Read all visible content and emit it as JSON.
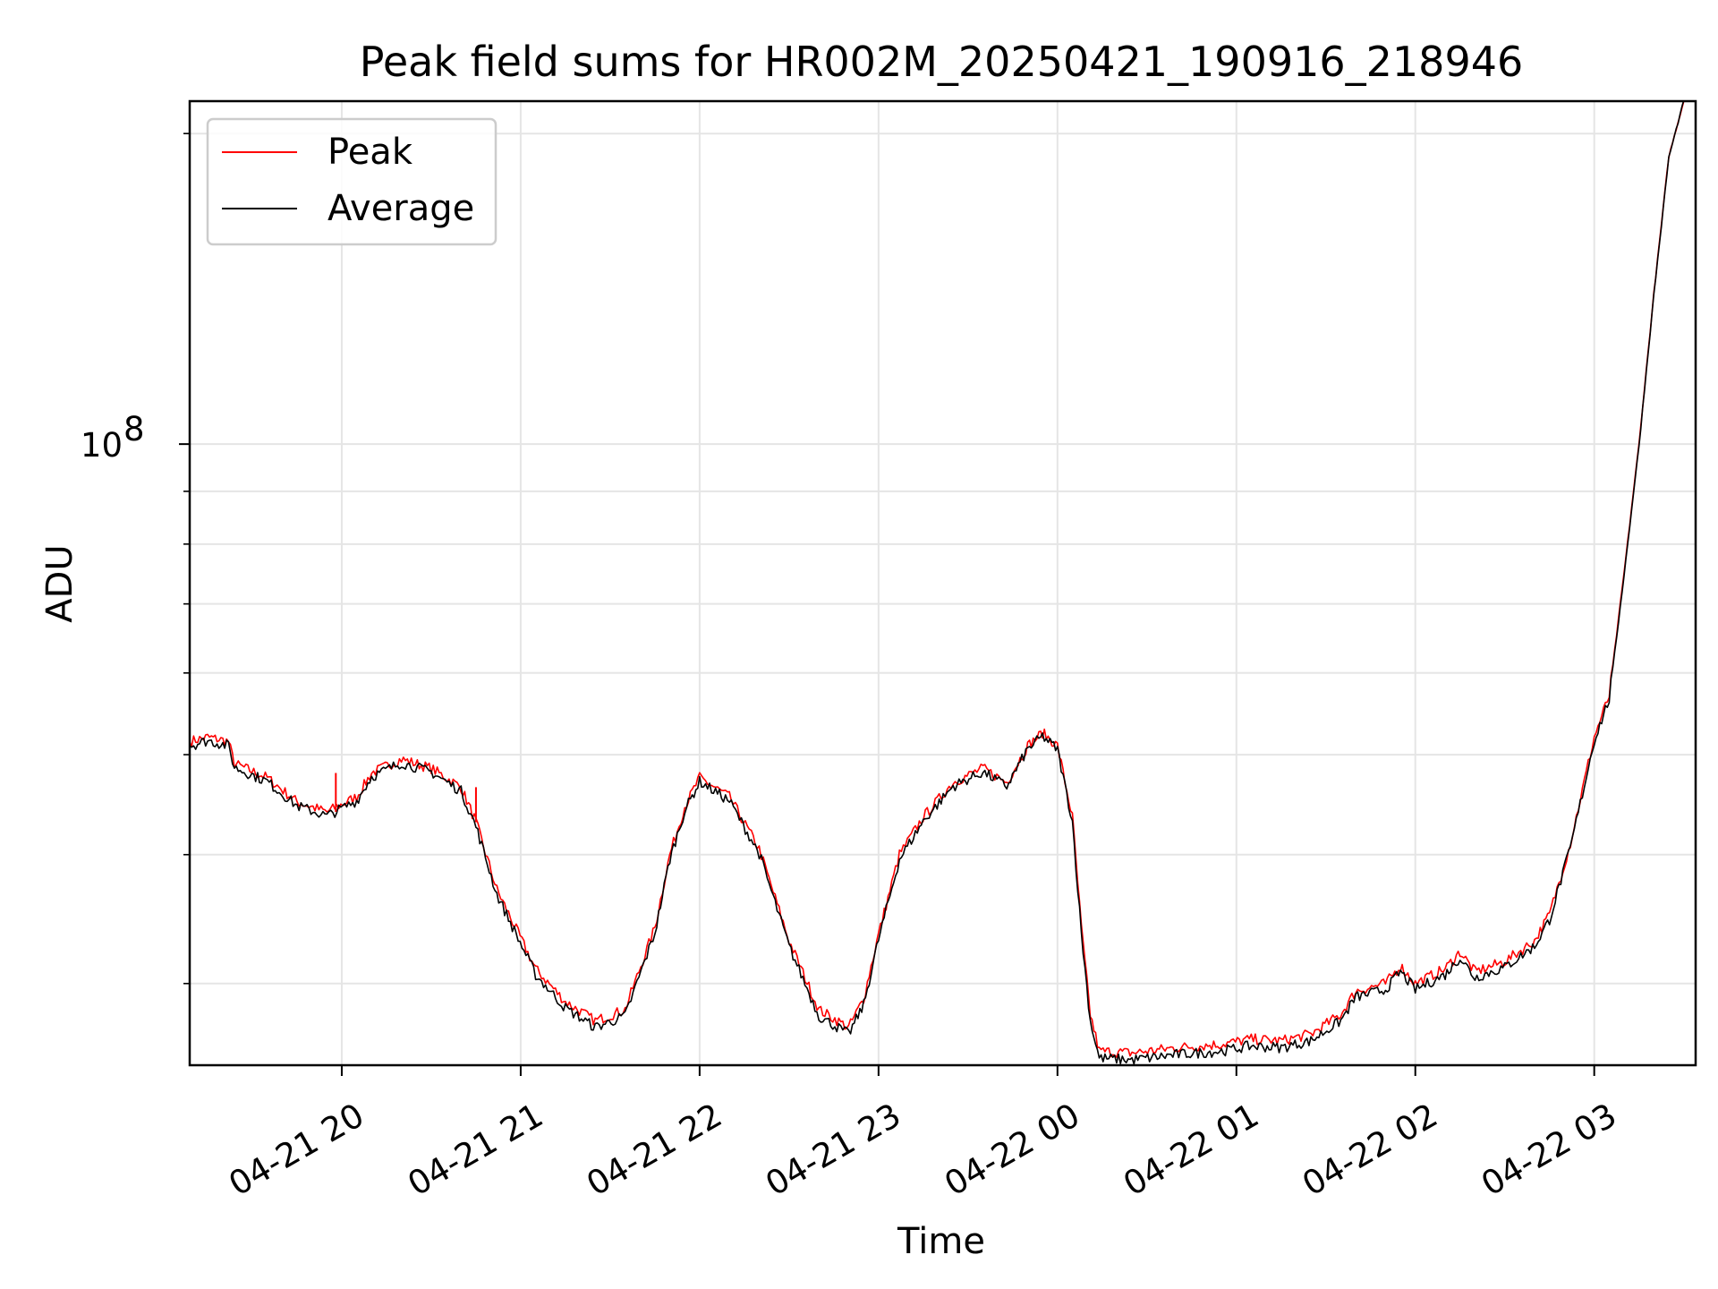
{
  "chart_data": {
    "type": "line",
    "title": "Peak field sums for HR002M_20250421_190916_218946",
    "xlabel": "Time",
    "ylabel": "ADU",
    "yscale": "log",
    "grid": true,
    "legend_position": "top-left",
    "xlim": [
      "2025-04-21 19:09",
      "2025-04-22 03:34"
    ],
    "ylim": [
      25000000,
      215000000
    ],
    "x_ticks": [
      {
        "t": "2025-04-21 20:00",
        "label": "04-21 20"
      },
      {
        "t": "2025-04-21 21:00",
        "label": "04-21 21"
      },
      {
        "t": "2025-04-21 22:00",
        "label": "04-21 22"
      },
      {
        "t": "2025-04-21 23:00",
        "label": "04-21 23"
      },
      {
        "t": "2025-04-22 00:00",
        "label": "04-22 00"
      },
      {
        "t": "2025-04-22 01:00",
        "label": "04-22 01"
      },
      {
        "t": "2025-04-22 02:00",
        "label": "04-22 02"
      },
      {
        "t": "2025-04-22 03:00",
        "label": "04-22 03"
      }
    ],
    "y_major_ticks": [
      {
        "value": 100000000,
        "label_base": "10",
        "label_exp": "8"
      }
    ],
    "y_minor_ticks": [
      30000000,
      40000000,
      50000000,
      60000000,
      70000000,
      80000000,
      90000000,
      200000000
    ],
    "colors": {
      "peak": "#ff0000",
      "average": "#000000"
    },
    "series": [
      {
        "name": "Peak",
        "color": "#ff0000",
        "points": [
          [
            "2025-04-21 19:09",
            51.5
          ],
          [
            "2025-04-21 19:15",
            52.0
          ],
          [
            "2025-04-21 19:22",
            51.5
          ],
          [
            "2025-04-21 19:24",
            49.0
          ],
          [
            "2025-04-21 19:35",
            47.5
          ],
          [
            "2025-04-21 19:45",
            45.0
          ],
          [
            "2025-04-21 19:55",
            44.0
          ],
          [
            "2025-04-21 20:05",
            45.5
          ],
          [
            "2025-04-21 20:10",
            48.0
          ],
          [
            "2025-04-21 20:20",
            49.5
          ],
          [
            "2025-04-21 20:30",
            48.5
          ],
          [
            "2025-04-21 20:40",
            46.5
          ],
          [
            "2025-04-21 20:45",
            43.0
          ],
          [
            "2025-04-21 20:52",
            37.0
          ],
          [
            "2025-04-21 21:05",
            31.0
          ],
          [
            "2025-04-21 21:15",
            28.8
          ],
          [
            "2025-04-21 21:25",
            27.6
          ],
          [
            "2025-04-21 21:35",
            28.3
          ],
          [
            "2025-04-21 21:45",
            34.0
          ],
          [
            "2025-04-21 21:50",
            40.0
          ],
          [
            "2025-04-21 21:55",
            44.5
          ],
          [
            "2025-04-21 22:00",
            47.5
          ],
          [
            "2025-04-21 22:10",
            45.5
          ],
          [
            "2025-04-21 22:20",
            40.5
          ],
          [
            "2025-04-21 22:30",
            33.0
          ],
          [
            "2025-04-21 22:40",
            28.3
          ],
          [
            "2025-04-21 22:50",
            27.2
          ],
          [
            "2025-04-21 22:55",
            29.0
          ],
          [
            "2025-04-21 23:00",
            33.5
          ],
          [
            "2025-04-21 23:07",
            40.0
          ],
          [
            "2025-04-21 23:15",
            43.5
          ],
          [
            "2025-04-21 23:25",
            47.0
          ],
          [
            "2025-04-21 23:35",
            48.5
          ],
          [
            "2025-04-21 23:43",
            47.0
          ],
          [
            "2025-04-21 23:50",
            51.0
          ],
          [
            "2025-04-21 23:55",
            52.5
          ],
          [
            "2025-04-22 00:00",
            51.0
          ],
          [
            "2025-04-22 00:05",
            43.5
          ],
          [
            "2025-04-22 00:08",
            34.0
          ],
          [
            "2025-04-22 00:11",
            28.0
          ],
          [
            "2025-04-22 00:14",
            25.8
          ],
          [
            "2025-04-22 00:25",
            25.7
          ],
          [
            "2025-04-22 00:40",
            26.0
          ],
          [
            "2025-04-22 00:55",
            26.2
          ],
          [
            "2025-04-22 01:05",
            26.5
          ],
          [
            "2025-04-22 01:15",
            26.4
          ],
          [
            "2025-04-22 01:25",
            26.8
          ],
          [
            "2025-04-22 01:35",
            28.0
          ],
          [
            "2025-04-22 01:40",
            29.5
          ],
          [
            "2025-04-22 01:50",
            30.0
          ],
          [
            "2025-04-22 01:55",
            31.2
          ],
          [
            "2025-04-22 02:00",
            30.0
          ],
          [
            "2025-04-22 02:10",
            31.0
          ],
          [
            "2025-04-22 02:15",
            32.2
          ],
          [
            "2025-04-22 02:20",
            30.8
          ],
          [
            "2025-04-22 02:30",
            31.5
          ],
          [
            "2025-04-22 02:40",
            33.0
          ],
          [
            "2025-04-22 02:45",
            35.0
          ],
          [
            "2025-04-22 02:52",
            41.0
          ],
          [
            "2025-04-22 03:00",
            52.0
          ],
          [
            "2025-04-22 03:05",
            57.0
          ],
          [
            "2025-04-22 03:10",
            75.0
          ],
          [
            "2025-04-22 03:15",
            100.0
          ],
          [
            "2025-04-22 03:20",
            140.0
          ],
          [
            "2025-04-22 03:25",
            190.0
          ],
          [
            "2025-04-22 03:30",
            215.0
          ]
        ]
      },
      {
        "name": "Average",
        "color": "#000000",
        "points": [
          [
            "2025-04-21 19:09",
            51.0
          ],
          [
            "2025-04-21 19:15",
            51.6
          ],
          [
            "2025-04-21 19:22",
            51.0
          ],
          [
            "2025-04-21 19:24",
            48.6
          ],
          [
            "2025-04-21 19:35",
            47.1
          ],
          [
            "2025-04-21 19:45",
            44.6
          ],
          [
            "2025-04-21 19:55",
            43.6
          ],
          [
            "2025-04-21 20:05",
            45.1
          ],
          [
            "2025-04-21 20:10",
            47.6
          ],
          [
            "2025-04-21 20:20",
            49.1
          ],
          [
            "2025-04-21 20:30",
            48.1
          ],
          [
            "2025-04-21 20:40",
            46.1
          ],
          [
            "2025-04-21 20:45",
            42.6
          ],
          [
            "2025-04-21 20:52",
            36.6
          ],
          [
            "2025-04-21 21:05",
            30.6
          ],
          [
            "2025-04-21 21:15",
            28.4
          ],
          [
            "2025-04-21 21:25",
            27.2
          ],
          [
            "2025-04-21 21:35",
            27.9
          ],
          [
            "2025-04-21 21:45",
            33.6
          ],
          [
            "2025-04-21 21:50",
            39.6
          ],
          [
            "2025-04-21 21:55",
            44.1
          ],
          [
            "2025-04-21 22:00",
            47.1
          ],
          [
            "2025-04-21 22:10",
            45.1
          ],
          [
            "2025-04-21 22:20",
            40.1
          ],
          [
            "2025-04-21 22:30",
            32.6
          ],
          [
            "2025-04-21 22:40",
            27.9
          ],
          [
            "2025-04-21 22:50",
            26.8
          ],
          [
            "2025-04-21 22:55",
            28.6
          ],
          [
            "2025-04-21 23:00",
            33.1
          ],
          [
            "2025-04-21 23:07",
            39.6
          ],
          [
            "2025-04-21 23:15",
            43.1
          ],
          [
            "2025-04-21 23:25",
            46.6
          ],
          [
            "2025-04-21 23:35",
            48.1
          ],
          [
            "2025-04-21 23:43",
            46.6
          ],
          [
            "2025-04-21 23:50",
            50.6
          ],
          [
            "2025-04-21 23:55",
            52.1
          ],
          [
            "2025-04-22 00:00",
            50.6
          ],
          [
            "2025-04-22 00:05",
            43.1
          ],
          [
            "2025-04-22 00:08",
            33.6
          ],
          [
            "2025-04-22 00:11",
            27.6
          ],
          [
            "2025-04-22 00:14",
            25.4
          ],
          [
            "2025-04-22 00:25",
            25.3
          ],
          [
            "2025-04-22 00:40",
            25.6
          ],
          [
            "2025-04-22 00:55",
            25.8
          ],
          [
            "2025-04-22 01:05",
            26.1
          ],
          [
            "2025-04-22 01:15",
            26.0
          ],
          [
            "2025-04-22 01:25",
            26.4
          ],
          [
            "2025-04-22 01:35",
            27.6
          ],
          [
            "2025-04-22 01:40",
            29.1
          ],
          [
            "2025-04-22 01:50",
            29.6
          ],
          [
            "2025-04-22 01:55",
            30.8
          ],
          [
            "2025-04-22 02:00",
            29.6
          ],
          [
            "2025-04-22 02:10",
            30.6
          ],
          [
            "2025-04-22 02:15",
            31.8
          ],
          [
            "2025-04-22 02:20",
            30.4
          ],
          [
            "2025-04-22 02:30",
            31.1
          ],
          [
            "2025-04-22 02:40",
            32.6
          ],
          [
            "2025-04-22 02:45",
            34.6
          ],
          [
            "2025-04-22 02:52",
            40.6
          ],
          [
            "2025-04-22 03:00",
            51.6
          ],
          [
            "2025-04-22 03:05",
            56.6
          ],
          [
            "2025-04-22 03:10",
            74.6
          ],
          [
            "2025-04-22 03:15",
            99.6
          ],
          [
            "2025-04-22 03:20",
            139.6
          ],
          [
            "2025-04-22 03:25",
            189.6
          ],
          [
            "2025-04-22 03:30",
            215.0
          ]
        ]
      }
    ],
    "y_units_multiplier": 1000000,
    "spikes": [
      {
        "series": "Peak",
        "t": "2025-04-21 19:58",
        "from": 44.0,
        "to": 48.0
      },
      {
        "series": "Peak",
        "t": "2025-04-21 20:45",
        "from": 43.0,
        "to": 46.5
      }
    ]
  }
}
